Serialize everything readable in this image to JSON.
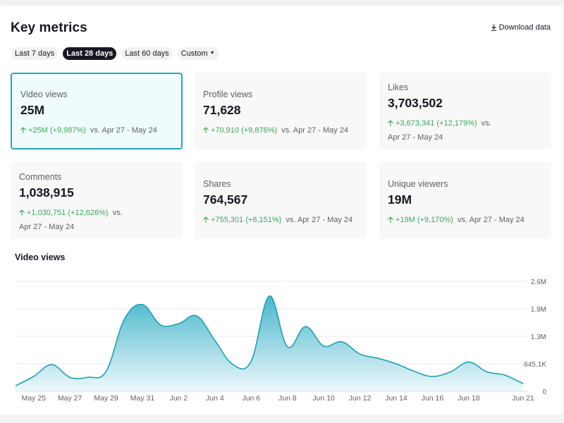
{
  "header": {
    "title": "Key metrics",
    "download_label": "Download data"
  },
  "range_chips": [
    {
      "label": "Last 7 days",
      "active": false
    },
    {
      "label": "Last 28 days",
      "active": true
    },
    {
      "label": "Last 60 days",
      "active": false
    },
    {
      "label": "Custom",
      "active": false
    }
  ],
  "metrics": [
    {
      "label": "Video views",
      "value": "25M",
      "delta": "+25M (+9,987%)",
      "comparison": "vs.  Apr 27 - May 24",
      "selected": true
    },
    {
      "label": "Profile views",
      "value": "71,628",
      "delta": "+70,910 (+9,876%)",
      "comparison": "vs.  Apr 27 - May 24",
      "selected": false
    },
    {
      "label": "Likes",
      "value": "3,703,502",
      "delta": "+3,673,341 (+12,179%)",
      "comparison": "vs.",
      "comparison2": "Apr 27 - May 24",
      "selected": false
    },
    {
      "label": "Comments",
      "value": "1,038,915",
      "delta": "+1,030,751 (+12,626%)",
      "comparison": "vs.",
      "comparison2": "Apr 27 - May 24",
      "selected": false
    },
    {
      "label": "Shares",
      "value": "764,567",
      "delta": "+755,301 (+8,151%)",
      "comparison": "vs.  Apr 27 - May 24",
      "selected": false
    },
    {
      "label": "Unique viewers",
      "value": "19M",
      "delta": "+19M (+9,170%)",
      "comparison": "vs.  Apr 27 - May 24",
      "selected": false
    }
  ],
  "colors": {
    "accent": "#21a8b8",
    "positive": "#3aa75b",
    "line": "#1c9fb6"
  },
  "chart_data": {
    "type": "area",
    "title": "Video views",
    "x_labels": [
      "May 25",
      "May 27",
      "May 29",
      "May 31",
      "Jun 2",
      "Jun 4",
      "Jun 6",
      "Jun 8",
      "Jun 10",
      "Jun 12",
      "Jun 14",
      "Jun 16",
      "Jun 18",
      "Jun 21"
    ],
    "y_ticks": [
      "0",
      "645.1K",
      "1.3M",
      "1.9M",
      "2.6M"
    ],
    "ylim": [
      0,
      2600000
    ],
    "grid": true,
    "points": [
      {
        "day": "May 24",
        "views": 130000
      },
      {
        "day": "May 25",
        "views": 350000
      },
      {
        "day": "May 26",
        "views": 630000
      },
      {
        "day": "May 27",
        "views": 330000
      },
      {
        "day": "May 28",
        "views": 330000
      },
      {
        "day": "May 29",
        "views": 470000
      },
      {
        "day": "May 30",
        "views": 1700000
      },
      {
        "day": "May 31",
        "views": 2050000
      },
      {
        "day": "Jun 1",
        "views": 1570000
      },
      {
        "day": "Jun 2",
        "views": 1600000
      },
      {
        "day": "Jun 3",
        "views": 1780000
      },
      {
        "day": "Jun 4",
        "views": 1200000
      },
      {
        "day": "Jun 5",
        "views": 630000
      },
      {
        "day": "Jun 6",
        "views": 710000
      },
      {
        "day": "Jun 7",
        "views": 2250000
      },
      {
        "day": "Jun 8",
        "views": 1050000
      },
      {
        "day": "Jun 9",
        "views": 1530000
      },
      {
        "day": "Jun 10",
        "views": 1070000
      },
      {
        "day": "Jun 11",
        "views": 1170000
      },
      {
        "day": "Jun 12",
        "views": 880000
      },
      {
        "day": "Jun 13",
        "views": 780000
      },
      {
        "day": "Jun 14",
        "views": 650000
      },
      {
        "day": "Jun 15",
        "views": 470000
      },
      {
        "day": "Jun 16",
        "views": 350000
      },
      {
        "day": "Jun 17",
        "views": 460000
      },
      {
        "day": "Jun 18",
        "views": 690000
      },
      {
        "day": "Jun 19",
        "views": 460000
      },
      {
        "day": "Jun 20",
        "views": 380000
      },
      {
        "day": "Jun 21",
        "views": 180000
      }
    ]
  }
}
